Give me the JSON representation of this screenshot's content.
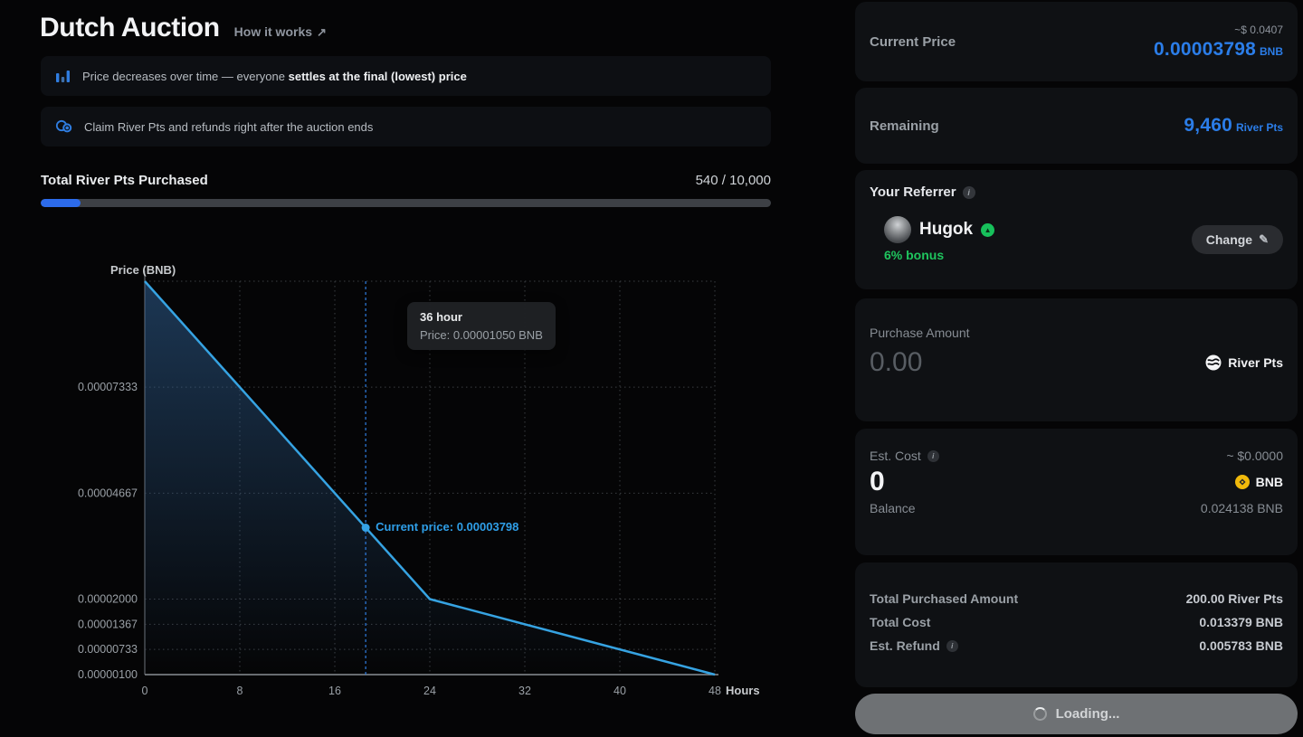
{
  "header": {
    "title": "Dutch Auction",
    "how_it_works": "How it works",
    "external_arrow": "↗"
  },
  "banners": [
    {
      "text": "Price decreases over time — everyone ",
      "bold": "settles at the final (lowest) price"
    },
    {
      "text": "Claim River Pts and refunds right after the auction ends",
      "bold": ""
    }
  ],
  "progress": {
    "label": "Total River Pts Purchased",
    "value": "540 / 10,000",
    "percent": 5.4
  },
  "chart_data": {
    "type": "line",
    "title": "",
    "ylabel": "Price (BNB)",
    "xlabel": "Hours",
    "x": [
      0,
      24,
      48
    ],
    "y": [
      0.0001,
      2e-05,
      1e-06
    ],
    "xlim": [
      0,
      48
    ],
    "ylim": [
      1e-06,
      0.0001
    ],
    "x_ticks": [
      0,
      8,
      16,
      24,
      32,
      40,
      48
    ],
    "y_ticks": [
      7.333e-05,
      4.667e-05,
      2e-05,
      1.367e-05,
      7.33e-06,
      1e-06
    ],
    "y_tick_labels": [
      "0.00007333",
      "0.00004667",
      "0.00002000",
      "0.00001367",
      "0.00000733",
      "0.00000100"
    ],
    "grid": true,
    "legend": false,
    "line_color": "#36a3e2",
    "area_top": "rgba(47,96,148,0.55)",
    "area_bottom": "rgba(47,96,148,0)",
    "current_point": {
      "hour": 18.6,
      "price": 3.798e-05,
      "label": "Current price: 0.00003798"
    },
    "tooltip": {
      "title": "36 hour",
      "line": "Price: 0.00001050 BNB"
    }
  },
  "panel": {
    "current_price": {
      "label": "Current Price",
      "usd": "~$ 0.0407",
      "value": "0.00003798",
      "unit": "BNB"
    },
    "remaining": {
      "label": "Remaining",
      "value": "9,460",
      "unit": "River Pts"
    },
    "referrer": {
      "label": "Your Referrer",
      "name": "Hugok",
      "bonus": "6% bonus",
      "change": "Change",
      "pencil": "✎",
      "badge": "▲"
    },
    "purchase": {
      "label": "Purchase Amount",
      "amount": "0.00",
      "token": "River Pts"
    },
    "cost": {
      "label": "Est. Cost",
      "usd": "~ $0.0000",
      "value": "0",
      "token": "BNB",
      "balance_label": "Balance",
      "balance": "0.024138 BNB"
    },
    "summary": [
      {
        "label": "Total Purchased Amount",
        "value": "200.00 River Pts"
      },
      {
        "label": "Total Cost",
        "value": "0.013379 BNB"
      },
      {
        "label": "Est. Refund",
        "value": "0.005783 BNB"
      }
    ],
    "action": "Loading...",
    "info_glyph": "i"
  },
  "colors": {
    "accent_blue": "#2b7de8",
    "chart_line": "#36a3e2",
    "current_marker_blue": "#2f7de1",
    "green": "#22c55e",
    "bnb_gold": "#f0b90b",
    "progress_fill": "#2c6beb"
  }
}
